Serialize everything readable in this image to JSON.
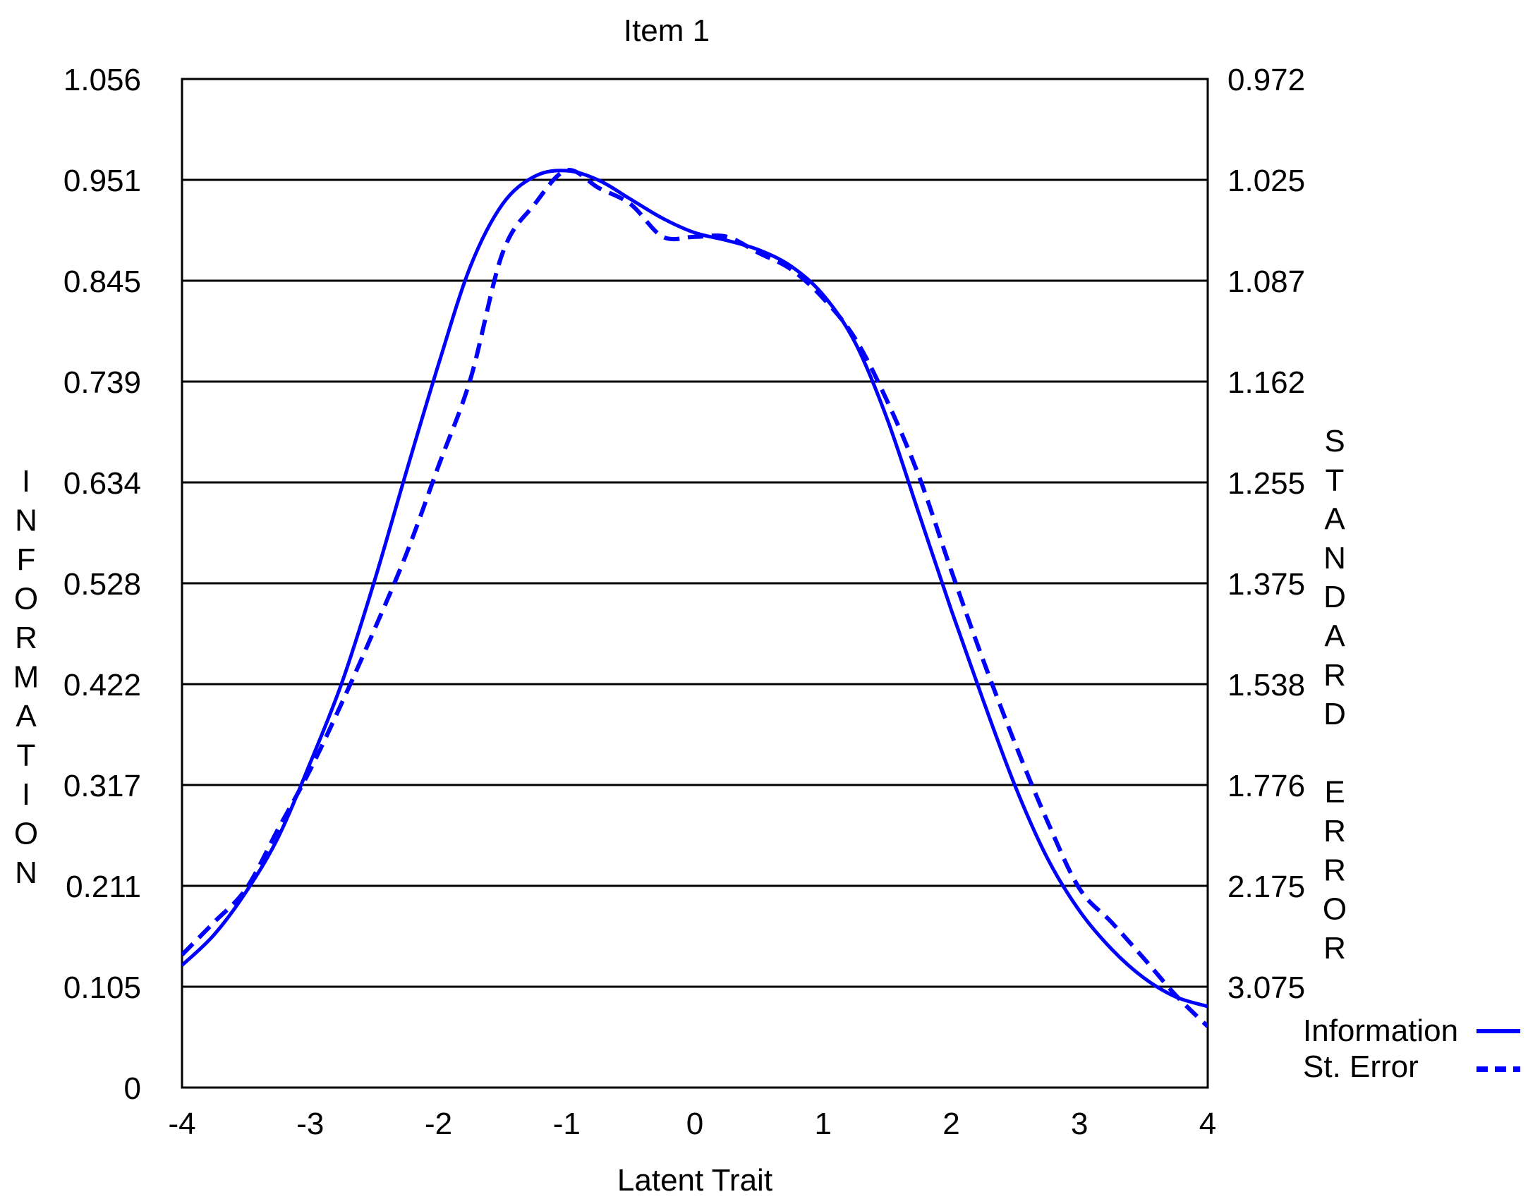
{
  "chart_data": {
    "type": "line",
    "title": "Item 1",
    "xlabel": "Latent Trait",
    "ylabel_left": "INFORMATION",
    "ylabel_right": "STANDARD ERROR",
    "xlim": [
      -4,
      4
    ],
    "x_ticks": [
      "-4",
      "-3",
      "-2",
      "-1",
      "0",
      "1",
      "2",
      "3",
      "4"
    ],
    "y_left_ticks": [
      "0",
      "0.105",
      "0.211",
      "0.317",
      "0.422",
      "0.528",
      "0.634",
      "0.739",
      "0.845",
      "0.951",
      "1.056"
    ],
    "y_right_ticks": [
      "3.075",
      "2.175",
      "1.776",
      "1.538",
      "1.375",
      "1.255",
      "1.162",
      "1.087",
      "1.025",
      "0.972"
    ],
    "ylim_left": [
      0,
      1.056
    ],
    "grid": true,
    "legend_position": "bottom-right",
    "series": [
      {
        "name": "Information",
        "line_style": "solid",
        "color": "#0000ff",
        "x": [
          -4.0,
          -3.75,
          -3.5,
          -3.25,
          -3.0,
          -2.75,
          -2.5,
          -2.25,
          -2.0,
          -1.75,
          -1.5,
          -1.25,
          -1.0,
          -0.75,
          -0.5,
          -0.25,
          0.0,
          0.25,
          0.5,
          0.75,
          1.0,
          1.25,
          1.5,
          1.75,
          2.0,
          2.25,
          2.5,
          2.75,
          3.0,
          3.25,
          3.5,
          3.75,
          4.0
        ],
        "values": [
          0.128,
          0.16,
          0.205,
          0.262,
          0.34,
          0.425,
          0.53,
          0.645,
          0.757,
          0.86,
          0.925,
          0.954,
          0.96,
          0.95,
          0.93,
          0.91,
          0.895,
          0.887,
          0.877,
          0.86,
          0.83,
          0.78,
          0.7,
          0.6,
          0.5,
          0.405,
          0.315,
          0.24,
          0.185,
          0.145,
          0.115,
          0.095,
          0.085
        ]
      },
      {
        "name": "St. Error",
        "line_style": "dashed",
        "color": "#0000ff",
        "x": [
          -4.0,
          -3.75,
          -3.5,
          -3.25,
          -3.0,
          -2.75,
          -2.5,
          -2.25,
          -2.0,
          -1.75,
          -1.5,
          -1.25,
          -1.0,
          -0.75,
          -0.5,
          -0.25,
          0.0,
          0.25,
          0.5,
          0.75,
          1.0,
          1.25,
          1.5,
          1.75,
          2.0,
          2.25,
          2.5,
          2.75,
          3.0,
          3.25,
          3.5,
          3.75,
          4.0
        ],
        "values": [
          2.79,
          2.5,
          2.2,
          1.95,
          1.74,
          1.58,
          1.45,
          1.34,
          1.24,
          1.16,
          1.07,
          1.04,
          1.02,
          1.03,
          1.04,
          1.06,
          1.06,
          1.06,
          1.07,
          1.08,
          1.1,
          1.13,
          1.18,
          1.25,
          1.36,
          1.5,
          1.68,
          1.92,
          2.2,
          2.5,
          2.82,
          3.15,
          3.43
        ],
        "note_values": "drawn on the right (standard error) axis"
      }
    ]
  }
}
